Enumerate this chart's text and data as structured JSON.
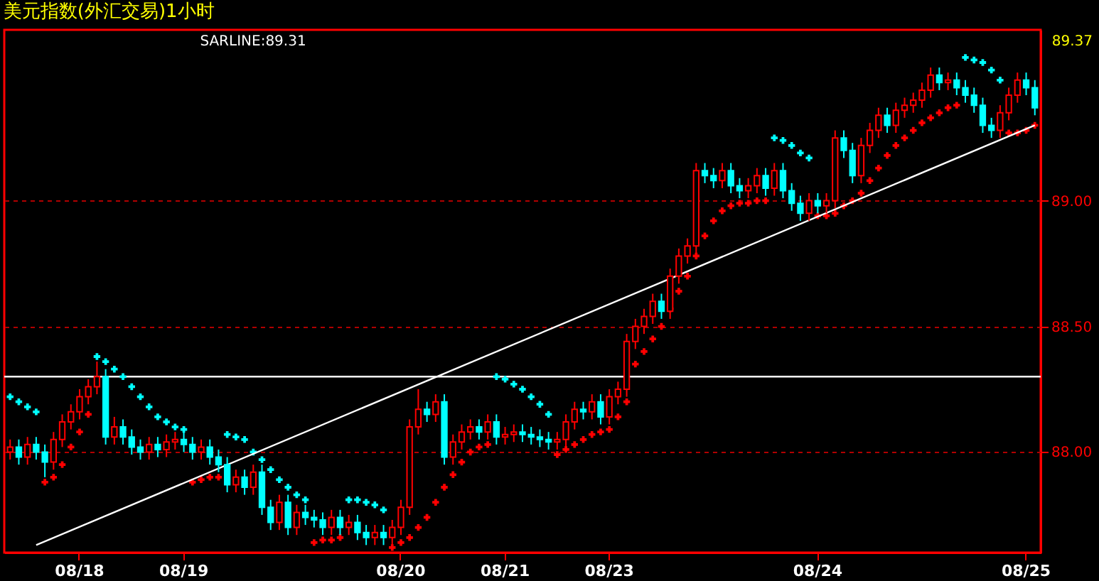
{
  "chart_data": {
    "type": "candlestick",
    "title": "美元指数(外汇交易)1小时",
    "categories": [
      null,
      null,
      null,
      null,
      null,
      null,
      null,
      null,
      "08/18",
      null,
      null,
      null,
      null,
      null,
      null,
      null,
      null,
      null,
      null,
      null,
      "08/19",
      null,
      null,
      null,
      null,
      null,
      null,
      null,
      null,
      null,
      null,
      null,
      null,
      null,
      null,
      null,
      null,
      null,
      null,
      null,
      null,
      null,
      null,
      null,
      null,
      "08/20",
      null,
      null,
      null,
      null,
      null,
      null,
      null,
      null,
      null,
      null,
      null,
      "08/21",
      null,
      null,
      null,
      null,
      null,
      null,
      null,
      null,
      null,
      null,
      null,
      "08/23",
      null,
      null,
      null,
      null,
      null,
      null,
      null,
      null,
      null,
      null,
      null,
      null,
      null,
      null,
      null,
      null,
      null,
      null,
      null,
      null,
      null,
      null,
      null,
      "08/24",
      null,
      null,
      null,
      null,
      null,
      null,
      null,
      null,
      null,
      null,
      null,
      null,
      null,
      null,
      null,
      null,
      null,
      null,
      null,
      null,
      null,
      null,
      null,
      "08/25",
      null
    ],
    "ohlc": [
      [
        88.0,
        88.05,
        87.97,
        88.02
      ],
      [
        88.02,
        88.05,
        87.95,
        87.98
      ],
      [
        87.98,
        88.06,
        87.95,
        88.03
      ],
      [
        88.03,
        88.06,
        87.97,
        88.0
      ],
      [
        88.0,
        88.03,
        87.9,
        87.96
      ],
      [
        87.96,
        88.08,
        87.93,
        88.05
      ],
      [
        88.05,
        88.15,
        88.02,
        88.12
      ],
      [
        88.12,
        88.19,
        88.09,
        88.16
      ],
      [
        88.16,
        88.25,
        88.13,
        88.22
      ],
      [
        88.22,
        88.29,
        88.19,
        88.26
      ],
      [
        88.26,
        88.36,
        88.23,
        88.3
      ],
      [
        88.3,
        88.33,
        88.03,
        88.06
      ],
      [
        88.06,
        88.14,
        88.03,
        88.1
      ],
      [
        88.1,
        88.13,
        88.03,
        88.06
      ],
      [
        88.06,
        88.09,
        87.99,
        88.02
      ],
      [
        88.02,
        88.05,
        87.97,
        88.0
      ],
      [
        88.0,
        88.06,
        87.97,
        88.03
      ],
      [
        88.03,
        88.06,
        87.98,
        88.01
      ],
      [
        88.01,
        88.07,
        87.98,
        88.04
      ],
      [
        88.04,
        88.08,
        88.01,
        88.05
      ],
      [
        88.05,
        88.08,
        88.0,
        88.03
      ],
      [
        88.03,
        88.06,
        87.97,
        88.0
      ],
      [
        88.0,
        88.05,
        87.97,
        88.02
      ],
      [
        88.02,
        88.05,
        87.95,
        87.98
      ],
      [
        87.98,
        88.01,
        87.92,
        87.95
      ],
      [
        87.95,
        87.98,
        87.84,
        87.87
      ],
      [
        87.87,
        87.93,
        87.84,
        87.9
      ],
      [
        87.9,
        87.93,
        87.83,
        87.86
      ],
      [
        87.86,
        87.95,
        87.83,
        87.92
      ],
      [
        87.92,
        87.95,
        87.75,
        87.78
      ],
      [
        87.78,
        87.81,
        87.69,
        87.72
      ],
      [
        87.72,
        87.83,
        87.69,
        87.8
      ],
      [
        87.8,
        87.83,
        87.67,
        87.7
      ],
      [
        87.7,
        87.79,
        87.67,
        87.76
      ],
      [
        87.76,
        87.79,
        87.71,
        87.74
      ],
      [
        87.74,
        87.77,
        87.7,
        87.73
      ],
      [
        87.73,
        87.76,
        87.67,
        87.7
      ],
      [
        87.7,
        87.77,
        87.67,
        87.74
      ],
      [
        87.74,
        87.77,
        87.67,
        87.7
      ],
      [
        87.7,
        87.75,
        87.67,
        87.72
      ],
      [
        87.72,
        87.75,
        87.65,
        87.68
      ],
      [
        87.68,
        87.71,
        87.63,
        87.66
      ],
      [
        87.66,
        87.71,
        87.63,
        87.68
      ],
      [
        87.68,
        87.71,
        87.63,
        87.66
      ],
      [
        87.66,
        87.73,
        87.63,
        87.7
      ],
      [
        87.7,
        87.81,
        87.67,
        87.78
      ],
      [
        87.78,
        88.13,
        87.75,
        88.1
      ],
      [
        88.1,
        88.25,
        88.07,
        88.17
      ],
      [
        88.17,
        88.2,
        88.12,
        88.15
      ],
      [
        88.15,
        88.23,
        88.12,
        88.2
      ],
      [
        88.2,
        88.23,
        87.95,
        87.98
      ],
      [
        87.98,
        88.07,
        87.95,
        88.04
      ],
      [
        88.04,
        88.11,
        88.01,
        88.08
      ],
      [
        88.08,
        88.13,
        88.05,
        88.1
      ],
      [
        88.1,
        88.13,
        88.05,
        88.08
      ],
      [
        88.08,
        88.15,
        88.05,
        88.12
      ],
      [
        88.12,
        88.15,
        88.03,
        88.06
      ],
      [
        88.06,
        88.1,
        88.03,
        88.07
      ],
      [
        88.07,
        88.11,
        88.04,
        88.08
      ],
      [
        88.08,
        88.11,
        88.04,
        88.07
      ],
      [
        88.07,
        88.1,
        88.03,
        88.06
      ],
      [
        88.06,
        88.09,
        88.02,
        88.05
      ],
      [
        88.05,
        88.08,
        88.01,
        88.04
      ],
      [
        88.04,
        88.08,
        88.01,
        88.05
      ],
      [
        88.05,
        88.15,
        88.02,
        88.12
      ],
      [
        88.12,
        88.2,
        88.09,
        88.17
      ],
      [
        88.17,
        88.2,
        88.13,
        88.16
      ],
      [
        88.16,
        88.23,
        88.13,
        88.2
      ],
      [
        88.2,
        88.23,
        88.11,
        88.14
      ],
      [
        88.14,
        88.25,
        88.11,
        88.22
      ],
      [
        88.22,
        88.28,
        88.19,
        88.25
      ],
      [
        88.25,
        88.47,
        88.22,
        88.44
      ],
      [
        88.44,
        88.53,
        88.41,
        88.5
      ],
      [
        88.5,
        88.57,
        88.47,
        88.54
      ],
      [
        88.54,
        88.63,
        88.51,
        88.6
      ],
      [
        88.6,
        88.63,
        88.53,
        88.56
      ],
      [
        88.56,
        88.73,
        88.53,
        88.7
      ],
      [
        88.7,
        88.81,
        88.67,
        88.78
      ],
      [
        88.78,
        88.85,
        88.75,
        88.82
      ],
      [
        88.82,
        89.15,
        88.79,
        89.12
      ],
      [
        89.12,
        89.15,
        89.07,
        89.1
      ],
      [
        89.1,
        89.13,
        89.05,
        89.08
      ],
      [
        89.08,
        89.15,
        89.05,
        89.12
      ],
      [
        89.12,
        89.15,
        89.03,
        89.06
      ],
      [
        89.06,
        89.09,
        89.01,
        89.04
      ],
      [
        89.04,
        89.09,
        89.01,
        89.06
      ],
      [
        89.06,
        89.13,
        89.03,
        89.1
      ],
      [
        89.1,
        89.13,
        89.02,
        89.05
      ],
      [
        89.05,
        89.15,
        89.02,
        89.12
      ],
      [
        89.12,
        89.15,
        89.01,
        89.04
      ],
      [
        89.04,
        89.07,
        88.96,
        88.99
      ],
      [
        88.99,
        89.02,
        88.92,
        88.95
      ],
      [
        88.95,
        89.03,
        88.92,
        89.0
      ],
      [
        89.0,
        89.03,
        88.95,
        88.98
      ],
      [
        88.98,
        89.03,
        88.95,
        89.0
      ],
      [
        89.0,
        89.28,
        88.97,
        89.25
      ],
      [
        89.25,
        89.28,
        89.17,
        89.2
      ],
      [
        89.2,
        89.23,
        89.07,
        89.1
      ],
      [
        89.1,
        89.25,
        89.07,
        89.22
      ],
      [
        89.22,
        89.31,
        89.19,
        89.28
      ],
      [
        89.28,
        89.37,
        89.25,
        89.34
      ],
      [
        89.34,
        89.37,
        89.27,
        89.3
      ],
      [
        89.3,
        89.39,
        89.27,
        89.36
      ],
      [
        89.36,
        89.41,
        89.33,
        89.38
      ],
      [
        89.38,
        89.43,
        89.35,
        89.4
      ],
      [
        89.4,
        89.47,
        89.37,
        89.44
      ],
      [
        89.44,
        89.53,
        89.41,
        89.5
      ],
      [
        89.5,
        89.53,
        89.44,
        89.47
      ],
      [
        89.47,
        89.51,
        89.44,
        89.48
      ],
      [
        89.48,
        89.51,
        89.42,
        89.45
      ],
      [
        89.45,
        89.48,
        89.39,
        89.42
      ],
      [
        89.42,
        89.45,
        89.35,
        89.38
      ],
      [
        89.38,
        89.41,
        89.27,
        89.3
      ],
      [
        89.3,
        89.33,
        89.25,
        89.28
      ],
      [
        89.28,
        89.38,
        89.25,
        89.35
      ],
      [
        89.35,
        89.45,
        89.32,
        89.42
      ],
      [
        89.42,
        89.51,
        89.39,
        89.48
      ],
      [
        89.48,
        89.51,
        89.42,
        89.45
      ],
      [
        89.45,
        89.48,
        89.34,
        89.37
      ]
    ],
    "colors": [
      "#ff0000",
      "#00ffff",
      "#ff0000",
      "#00ffff",
      "#00ffff",
      "#ff0000",
      "#ff0000",
      "#ff0000",
      "#ff0000",
      "#ff0000",
      "#ff0000",
      "#00ffff",
      "#ff0000",
      "#00ffff",
      "#00ffff",
      "#00ffff",
      "#ff0000",
      "#00ffff",
      "#ff0000",
      "#ff0000",
      "#00ffff",
      "#00ffff",
      "#ff0000",
      "#00ffff",
      "#00ffff",
      "#00ffff",
      "#ff0000",
      "#00ffff",
      "#ff0000",
      "#00ffff",
      "#00ffff",
      "#ff0000",
      "#00ffff",
      "#ff0000",
      "#00ffff",
      "#00ffff",
      "#00ffff",
      "#ff0000",
      "#00ffff",
      "#ff0000",
      "#00ffff",
      "#00ffff",
      "#ff0000",
      "#00ffff",
      "#ff0000",
      "#ff0000",
      "#ff0000",
      "#ff0000",
      "#00ffff",
      "#ff0000",
      "#00ffff",
      "#ff0000",
      "#ff0000",
      "#ff0000",
      "#00ffff",
      "#ff0000",
      "#00ffff",
      "#ff0000",
      "#ff0000",
      "#00ffff",
      "#00ffff",
      "#00ffff",
      "#00ffff",
      "#ff0000",
      "#ff0000",
      "#ff0000",
      "#00ffff",
      "#ff0000",
      "#00ffff",
      "#ff0000",
      "#ff0000",
      "#ff0000",
      "#ff0000",
      "#ff0000",
      "#ff0000",
      "#00ffff",
      "#ff0000",
      "#ff0000",
      "#ff0000",
      "#ff0000",
      "#00ffff",
      "#00ffff",
      "#ff0000",
      "#00ffff",
      "#00ffff",
      "#ff0000",
      "#ff0000",
      "#00ffff",
      "#ff0000",
      "#00ffff",
      "#00ffff",
      "#00ffff",
      "#ff0000",
      "#00ffff",
      "#ff0000",
      "#ff0000",
      "#00ffff",
      "#00ffff",
      "#ff0000",
      "#ff0000",
      "#ff0000",
      "#00ffff",
      "#ff0000",
      "#ff0000",
      "#ff0000",
      "#ff0000",
      "#ff0000",
      "#00ffff",
      "#ff0000",
      "#00ffff",
      "#00ffff",
      "#00ffff",
      "#00ffff",
      "#00ffff",
      "#ff0000",
      "#ff0000",
      "#ff0000",
      "#00ffff",
      "#00ffff"
    ],
    "series": [
      {
        "type": "scatter",
        "marker": "cross",
        "color": "#ff0000",
        "values": [
          null,
          null,
          null,
          null,
          87.88,
          87.9,
          87.95,
          88.02,
          88.08,
          88.15,
          null,
          null,
          null,
          null,
          null,
          null,
          null,
          null,
          null,
          null,
          null,
          87.88,
          87.89,
          87.9,
          87.9,
          null,
          null,
          null,
          null,
          null,
          null,
          null,
          null,
          null,
          null,
          87.64,
          87.65,
          87.65,
          87.66,
          null,
          null,
          null,
          null,
          null,
          87.62,
          87.64,
          87.66,
          87.7,
          87.74,
          87.8,
          87.86,
          87.91,
          87.96,
          88.0,
          88.02,
          88.03,
          null,
          null,
          null,
          null,
          null,
          null,
          null,
          87.99,
          88.01,
          88.03,
          88.05,
          88.07,
          88.08,
          88.09,
          88.14,
          88.2,
          88.35,
          88.4,
          88.45,
          88.5,
          88.57,
          88.64,
          88.7,
          88.78,
          88.86,
          88.92,
          88.96,
          88.98,
          88.99,
          88.99,
          89.0,
          89.0,
          null,
          null,
          null,
          null,
          null,
          88.94,
          88.94,
          88.95,
          88.98,
          89.0,
          89.03,
          89.08,
          89.13,
          89.18,
          89.22,
          89.25,
          89.28,
          89.31,
          89.33,
          89.35,
          89.37,
          89.38,
          null,
          null,
          null,
          null,
          null,
          89.27,
          89.27,
          89.28,
          89.3
        ]
      },
      {
        "type": "scatter",
        "marker": "cross",
        "color": "#00ffff",
        "values": [
          88.22,
          88.2,
          88.18,
          88.16,
          null,
          null,
          null,
          null,
          null,
          null,
          88.38,
          88.36,
          88.33,
          88.3,
          88.26,
          88.22,
          88.18,
          88.14,
          88.12,
          88.1,
          88.09,
          null,
          null,
          null,
          null,
          88.07,
          88.06,
          88.05,
          88.0,
          87.97,
          87.93,
          87.89,
          87.86,
          87.83,
          87.81,
          null,
          null,
          null,
          null,
          87.81,
          87.81,
          87.8,
          87.79,
          87.77,
          null,
          null,
          null,
          null,
          null,
          null,
          null,
          null,
          null,
          null,
          null,
          null,
          88.3,
          88.29,
          88.27,
          88.25,
          88.22,
          88.19,
          88.15,
          null,
          null,
          null,
          null,
          null,
          null,
          null,
          null,
          null,
          null,
          null,
          null,
          null,
          null,
          null,
          null,
          null,
          null,
          null,
          null,
          null,
          null,
          null,
          null,
          null,
          89.25,
          89.24,
          89.22,
          89.19,
          89.17,
          null,
          null,
          null,
          null,
          null,
          null,
          null,
          null,
          null,
          null,
          null,
          null,
          null,
          null,
          null,
          null,
          null,
          89.57,
          89.56,
          89.55,
          89.52,
          89.48,
          null,
          null,
          null,
          null
        ]
      },
      {
        "type": "line",
        "marker": "none",
        "color": "#ffffff",
        "values": [
          null,
          null,
          null,
          87.63,
          null,
          null,
          null,
          null,
          null,
          null,
          null,
          null,
          null,
          null,
          null,
          null,
          null,
          null,
          null,
          null,
          null,
          null,
          null,
          null,
          null,
          null,
          null,
          null,
          null,
          null,
          null,
          null,
          null,
          null,
          null,
          null,
          null,
          null,
          null,
          null,
          null,
          null,
          null,
          null,
          null,
          null,
          null,
          null,
          null,
          null,
          null,
          null,
          null,
          null,
          null,
          null,
          null,
          null,
          null,
          null,
          null,
          null,
          null,
          null,
          null,
          null,
          null,
          null,
          null,
          null,
          null,
          null,
          null,
          null,
          null,
          null,
          null,
          null,
          null,
          null,
          null,
          null,
          null,
          null,
          null,
          null,
          null,
          null,
          null,
          null,
          null,
          null,
          null,
          null,
          null,
          null,
          null,
          null,
          null,
          null,
          null,
          null,
          null,
          null,
          null,
          null,
          null,
          null,
          null,
          null,
          null,
          null,
          null,
          null,
          null,
          null,
          null,
          null,
          89.3
        ]
      }
    ],
    "ylim": [
      87.6,
      89.68
    ],
    "yticks": [
      {
        "value": 88.0,
        "label": "88.00"
      },
      {
        "value": 88.5,
        "label": "88.50"
      },
      {
        "value": 89.0,
        "label": "89.00"
      }
    ],
    "ref_lines": [
      {
        "axis": "y",
        "value": 88.3,
        "color": "#ffffff"
      }
    ],
    "annotations": [
      "SARLINE:89.31",
      "89.37"
    ],
    "grid": "y",
    "line_style": "solid"
  }
}
